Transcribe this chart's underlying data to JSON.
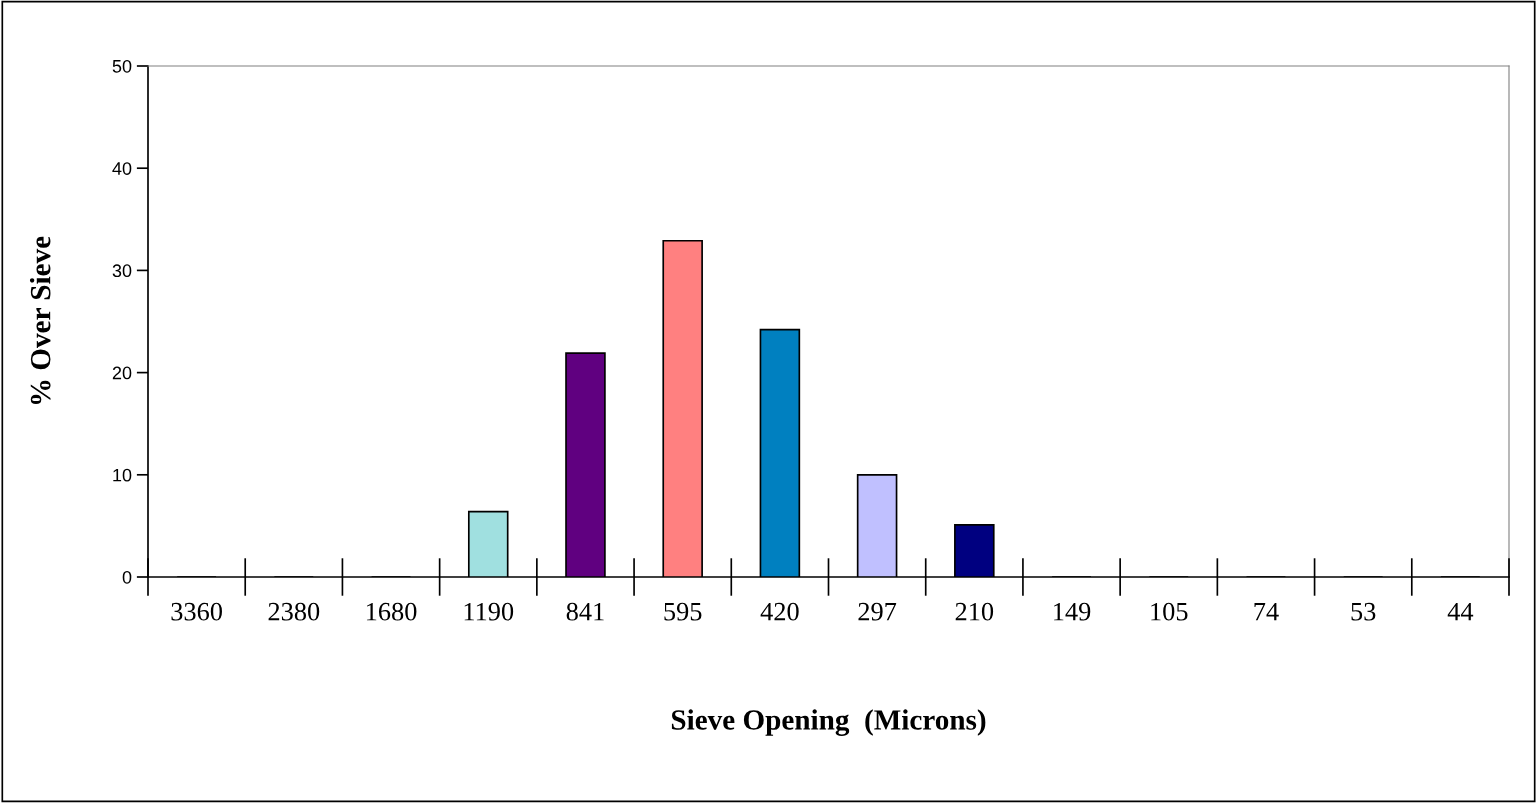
{
  "chart_data": {
    "type": "bar",
    "xlabel": "Sieve Opening  (Microns)",
    "ylabel": "% Over Sieve",
    "categories": [
      "3360",
      "2380",
      "1680",
      "1190",
      "841",
      "595",
      "420",
      "297",
      "210",
      "149",
      "105",
      "74",
      "53",
      "44"
    ],
    "values": [
      0,
      0,
      0,
      6.4,
      21.9,
      32.9,
      24.2,
      10.0,
      5.1,
      0,
      0,
      0,
      0,
      0
    ],
    "colors": [
      "#9999ff",
      "#9999ff",
      "#9999ff",
      "#a0e0e0",
      "#600080",
      "#ff8080",
      "#0080c0",
      "#c0c0ff",
      "#000080",
      "#9999ff",
      "#9999ff",
      "#9999ff",
      "#9999ff",
      "#9999ff"
    ],
    "ylim": [
      0,
      50
    ],
    "yticks": [
      0,
      10,
      20,
      30,
      40,
      50
    ],
    "grid": false,
    "legend": false
  }
}
